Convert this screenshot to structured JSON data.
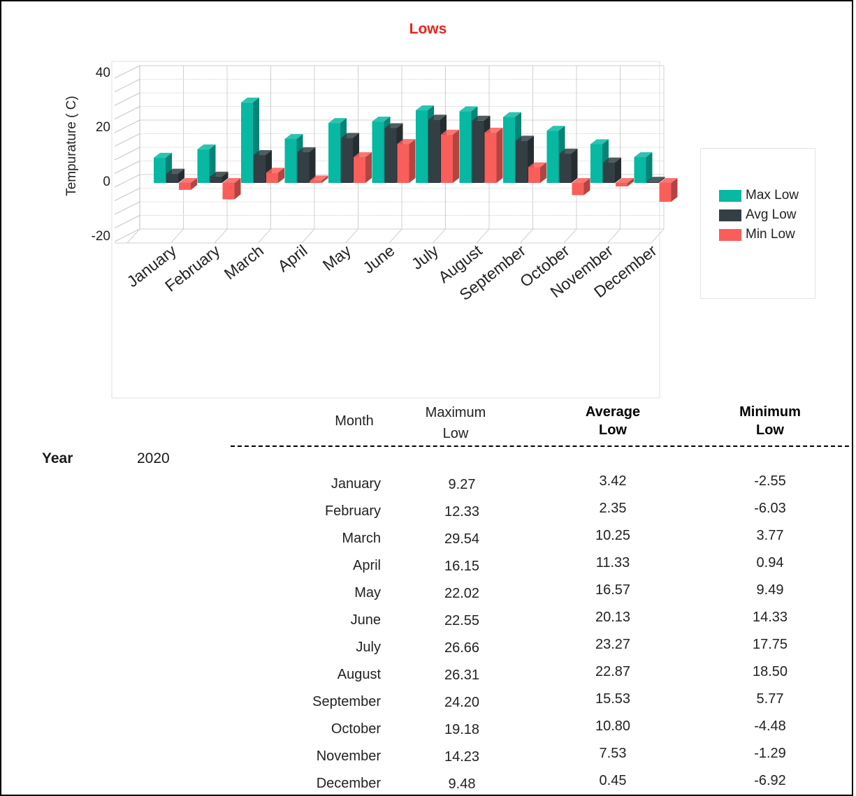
{
  "chart_data": {
    "type": "bar",
    "title": "Lows",
    "ylabel": "Tempurature ( C)",
    "xlabel": "",
    "ylim": [
      -20,
      40
    ],
    "yticks": [
      -20,
      0,
      20,
      40
    ],
    "grid": true,
    "legend_position": "right",
    "categories": [
      "January",
      "February",
      "March",
      "April",
      "May",
      "June",
      "July",
      "August",
      "September",
      "October",
      "November",
      "December"
    ],
    "series": [
      {
        "name": "Max Low",
        "color": "#07b8a3",
        "values": [
          9.27,
          12.33,
          29.54,
          16.15,
          22.02,
          22.55,
          26.66,
          26.31,
          24.2,
          19.18,
          14.23,
          9.48
        ]
      },
      {
        "name": "Avg Low",
        "color": "#333f44",
        "values": [
          3.42,
          2.35,
          10.25,
          11.33,
          16.57,
          20.13,
          23.27,
          22.87,
          15.53,
          10.8,
          7.53,
          0.45
        ]
      },
      {
        "name": "Min Low",
        "color": "#fa5e5a",
        "values": [
          -2.55,
          -6.03,
          3.77,
          0.94,
          9.49,
          14.33,
          17.75,
          18.5,
          5.77,
          -4.48,
          -1.29,
          -6.92
        ]
      }
    ]
  },
  "table": {
    "headers": {
      "month": "Month",
      "max": [
        "Maximum",
        "Low"
      ],
      "avg": [
        "Average",
        "Low"
      ],
      "min": [
        "Minimum",
        "Low"
      ]
    },
    "year_label": "Year",
    "year_value": "2020",
    "rows": [
      {
        "month": "January",
        "max": "9.27",
        "avg": "3.42",
        "min": "-2.55"
      },
      {
        "month": "February",
        "max": "12.33",
        "avg": "2.35",
        "min": "-6.03"
      },
      {
        "month": "March",
        "max": "29.54",
        "avg": "10.25",
        "min": "3.77"
      },
      {
        "month": "April",
        "max": "16.15",
        "avg": "11.33",
        "min": "0.94"
      },
      {
        "month": "May",
        "max": "22.02",
        "avg": "16.57",
        "min": "9.49"
      },
      {
        "month": "June",
        "max": "22.55",
        "avg": "20.13",
        "min": "14.33"
      },
      {
        "month": "July",
        "max": "26.66",
        "avg": "23.27",
        "min": "17.75"
      },
      {
        "month": "August",
        "max": "26.31",
        "avg": "22.87",
        "min": "18.50"
      },
      {
        "month": "September",
        "max": "24.20",
        "avg": "15.53",
        "min": "5.77"
      },
      {
        "month": "October",
        "max": "19.18",
        "avg": "10.80",
        "min": "-4.48"
      },
      {
        "month": "November",
        "max": "14.23",
        "avg": "7.53",
        "min": "-1.29"
      },
      {
        "month": "December",
        "max": "9.48",
        "avg": "0.45",
        "min": "-6.92"
      }
    ]
  }
}
